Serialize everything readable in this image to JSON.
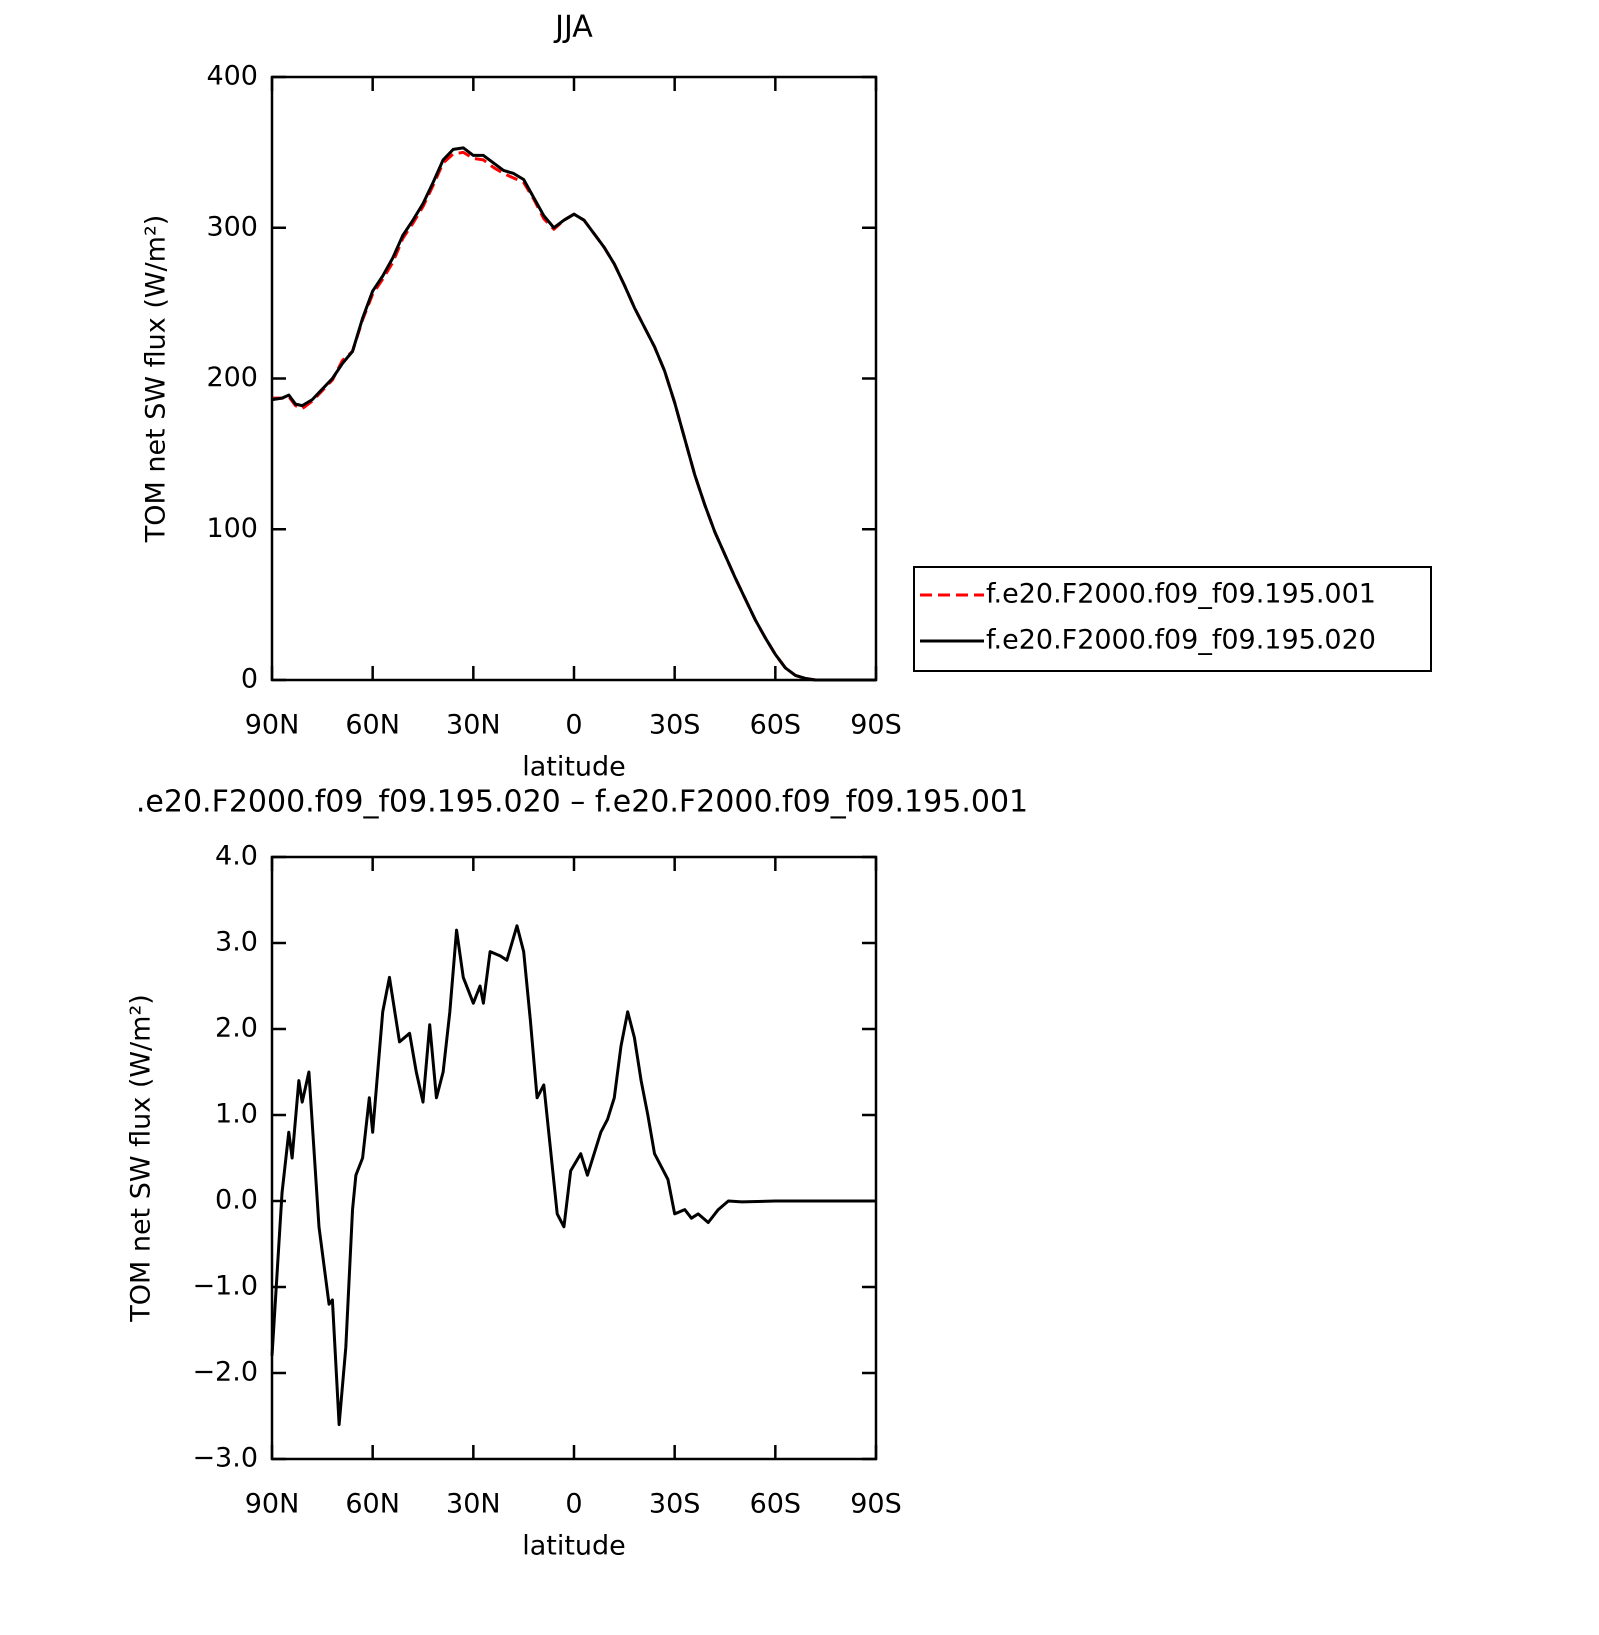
{
  "chart_data": [
    {
      "type": "line",
      "title": "JJA",
      "xlabel": "latitude",
      "ylabel": "TOM net SW flux (W/m²)",
      "x": [
        90,
        87,
        85,
        83,
        81,
        78,
        75,
        72,
        69,
        66,
        63,
        60,
        57,
        54,
        51,
        48,
        45,
        42,
        39,
        36,
        33,
        30,
        27,
        24,
        21,
        18,
        15,
        12,
        9,
        6,
        3,
        0,
        -3,
        -6,
        -9,
        -12,
        -15,
        -18,
        -21,
        -24,
        -27,
        -30,
        -33,
        -36,
        -39,
        -42,
        -45,
        -48,
        -51,
        -54,
        -57,
        -60,
        -63,
        -66,
        -69,
        -72,
        -75,
        -80,
        -85,
        -90
      ],
      "series": [
        {
          "name": "f.e20.F2000.f09_f09.195.001",
          "color": "#ff0000",
          "line_style": "dashed",
          "values": [
            187,
            187,
            188,
            182,
            180,
            185,
            192,
            199,
            212,
            218,
            239,
            256,
            266,
            277,
            293,
            303,
            314,
            328,
            343,
            349,
            350,
            346,
            345,
            340,
            336,
            333,
            330,
            319,
            306,
            299,
            305,
            309,
            305,
            296,
            287,
            276,
            262,
            247,
            234,
            221,
            205,
            184,
            160,
            136,
            116,
            98,
            83,
            68,
            54,
            40,
            28,
            17,
            8,
            3,
            1,
            0,
            0,
            0,
            0,
            0
          ]
        },
        {
          "name": "f.e20.F2000.f09_f09.195.020",
          "color": "#000000",
          "line_style": "solid",
          "values": [
            186,
            187,
            189,
            183,
            182,
            186,
            193,
            200,
            210,
            218,
            240,
            258,
            268,
            280,
            295,
            305,
            316,
            330,
            345,
            352,
            353,
            348,
            348,
            343,
            338,
            336,
            332,
            320,
            308,
            300,
            305,
            309,
            305,
            296,
            287,
            276,
            262,
            247,
            234,
            221,
            205,
            184,
            160,
            136,
            116,
            98,
            83,
            68,
            54,
            40,
            28,
            17,
            8,
            3,
            1,
            0,
            0,
            0,
            0,
            0
          ]
        }
      ],
      "xlim": [
        90,
        -90
      ],
      "xticks": [
        {
          "value": 90,
          "label": "90N"
        },
        {
          "value": 60,
          "label": "60N"
        },
        {
          "value": 30,
          "label": "30N"
        },
        0,
        {
          "value": -30,
          "label": "30S"
        },
        {
          "value": -60,
          "label": "60S"
        },
        {
          "value": -90,
          "label": "90S"
        }
      ],
      "ylim": [
        0,
        400
      ],
      "yticks": [
        0,
        100,
        200,
        300,
        400
      ],
      "legend": "right"
    },
    {
      "type": "line",
      "title": ".e20.F2000.f09_f09.195.020 – f.e20.F2000.f09_f09.195.001",
      "xlabel": "latitude",
      "ylabel": "TOM net SW flux (W/m²)",
      "x": [
        90,
        87,
        85,
        84,
        82,
        81,
        79,
        76,
        73,
        72,
        70,
        68,
        66,
        65,
        63,
        61,
        60,
        57,
        55,
        52,
        49,
        47,
        45,
        43,
        41,
        39,
        37,
        35,
        33,
        30,
        28,
        27,
        25,
        22,
        20,
        17,
        15,
        13,
        11,
        9,
        7,
        5,
        3,
        1,
        -2,
        -4,
        -6,
        -8,
        -10,
        -12,
        -14,
        -16,
        -18,
        -20,
        -22,
        -24,
        -26,
        -28,
        -30,
        -33,
        -35,
        -37,
        -40,
        -43,
        -46,
        -50,
        -60,
        -70,
        -80,
        -90
      ],
      "series": [
        {
          "color": "#000000",
          "line_style": "solid",
          "values": [
            -1.8,
            0.1,
            0.8,
            0.5,
            1.4,
            1.15,
            1.5,
            -0.3,
            -1.2,
            -1.15,
            -2.6,
            -1.7,
            -0.1,
            0.3,
            0.5,
            1.2,
            0.8,
            2.2,
            2.6,
            1.85,
            1.95,
            1.5,
            1.15,
            2.05,
            1.2,
            1.5,
            2.2,
            3.15,
            2.6,
            2.3,
            2.5,
            2.3,
            2.9,
            2.85,
            2.8,
            3.2,
            2.9,
            2.1,
            1.2,
            1.35,
            0.6,
            -0.15,
            -0.3,
            0.35,
            0.55,
            0.3,
            0.55,
            0.8,
            0.95,
            1.2,
            1.8,
            2.2,
            1.9,
            1.4,
            1.0,
            0.55,
            0.4,
            0.25,
            -0.15,
            -0.1,
            -0.2,
            -0.15,
            -0.25,
            -0.1,
            0.0,
            -0.01,
            0,
            0,
            0,
            0
          ]
        }
      ],
      "xlim": [
        90,
        -90
      ],
      "xticks": [
        {
          "value": 90,
          "label": "90N"
        },
        {
          "value": 60,
          "label": "60N"
        },
        {
          "value": 30,
          "label": "30N"
        },
        0,
        {
          "value": -30,
          "label": "30S"
        },
        {
          "value": -60,
          "label": "60S"
        },
        {
          "value": -90,
          "label": "90S"
        }
      ],
      "ylim": [
        -3,
        4
      ],
      "yticks": [
        {
          "value": -3,
          "label": "−3.0"
        },
        {
          "value": -2,
          "label": "−2.0"
        },
        {
          "value": -1,
          "label": "−1.0"
        },
        {
          "value": 0,
          "label": "0.0"
        },
        {
          "value": 1,
          "label": "1.0"
        },
        {
          "value": 2,
          "label": "2.0"
        },
        {
          "value": 3,
          "label": "3.0"
        },
        {
          "value": 4,
          "label": "4.0"
        }
      ]
    }
  ]
}
